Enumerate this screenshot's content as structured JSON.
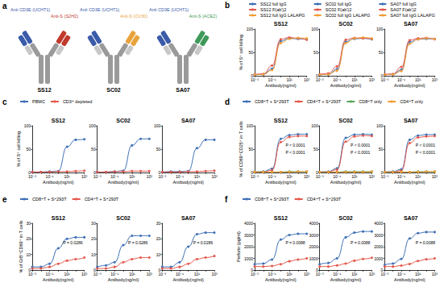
{
  "diagram": {
    "label": "a",
    "antibodies": [
      {
        "name": "SS12",
        "cd3_arm": "Anti CD3E (UCHT1)",
        "s_arm": "Anti-S (S2H2)",
        "cd3_color": "#3a5ba9",
        "s_color": "#c0392b"
      },
      {
        "name": "SC02",
        "cd3_arm": "Anti CD3E (UCHT1)",
        "s_arm": "Anti-S (CV30)",
        "cd3_color": "#3a5ba9",
        "s_color": "#e8a33c"
      },
      {
        "name": "SA07",
        "cd3_arm": "Anti CD3E (UCHT1)",
        "s_arm": "Anti-S (ACE2)",
        "cd3_color": "#3a5ba9",
        "s_color": "#3f9a5a"
      }
    ]
  },
  "chart_data": [
    {
      "label": "b",
      "type": "line",
      "log": "x",
      "grid": false,
      "legend": "top",
      "marker": "circle",
      "x_label": "Antibody(ng/ml)",
      "y_label": "% of S⁺ cell killing",
      "x": [
        0.001,
        0.01,
        0.1,
        1,
        10,
        100,
        1000
      ],
      "xlim": [
        0.001,
        1000
      ],
      "xticks": [
        {
          "value": 0.001,
          "label": "10⁻³"
        },
        {
          "value": 0.1,
          "label": "10⁻¹"
        },
        {
          "value": 10,
          "label": "10¹"
        },
        {
          "value": 1000,
          "label": "10³"
        }
      ],
      "ylim": [
        0,
        100
      ],
      "yticks": [
        0,
        50,
        100
      ],
      "subplots": [
        {
          "title": "SS12",
          "series": [
            {
              "name": "SS12 full IgG",
              "color": "#3d6fb5",
              "values": [
                2,
                3,
                15,
                74,
                80,
                79,
                78
              ]
            },
            {
              "name": "SS12 F(ab')2",
              "color": "#e4574a",
              "values": [
                3,
                4,
                22,
                78,
                82,
                80,
                77
              ]
            },
            {
              "name": "SS12 full IgG LALAPG",
              "color": "#f39c34",
              "values": [
                2,
                3,
                12,
                70,
                79,
                81,
                80
              ]
            }
          ]
        },
        {
          "title": "SC02",
          "series": [
            {
              "name": "SC02 full IgG",
              "color": "#3d6fb5",
              "values": [
                2,
                3,
                14,
                73,
                79,
                80,
                78
              ]
            },
            {
              "name": "SC02 F(ab')2",
              "color": "#e4574a",
              "values": [
                3,
                5,
                20,
                77,
                81,
                80,
                79
              ]
            },
            {
              "name": "SC02 full IgG LALAPG",
              "color": "#f39c34",
              "values": [
                2,
                3,
                11,
                70,
                80,
                82,
                80
              ]
            }
          ]
        },
        {
          "title": "SA07",
          "series": [
            {
              "name": "SA07 full IgG",
              "color": "#3d6fb5",
              "values": [
                2,
                3,
                13,
                72,
                78,
                79,
                79
              ]
            },
            {
              "name": "SA07 F(ab')2",
              "color": "#e4574a",
              "values": [
                3,
                4,
                19,
                76,
                80,
                81,
                78
              ]
            },
            {
              "name": "SA07 full IgG LALAPG",
              "color": "#f39c34",
              "values": [
                2,
                3,
                10,
                68,
                78,
                80,
                79
              ]
            }
          ]
        }
      ]
    },
    {
      "label": "c",
      "type": "line",
      "log": "x",
      "grid": false,
      "legend": "top",
      "marker": "circle",
      "x_label": "Antibody(ng/ml)",
      "y_label": "% of S⁺ cell killing",
      "x": [
        0.001,
        0.01,
        0.1,
        1,
        10,
        100,
        1000
      ],
      "xlim": [
        0.001,
        1000
      ],
      "xticks": [
        {
          "value": 0.001,
          "label": "10⁻³"
        },
        {
          "value": 0.1,
          "label": "10⁻¹"
        },
        {
          "value": 10,
          "label": "10¹"
        },
        {
          "value": 1000,
          "label": "10³"
        }
      ],
      "ylim": [
        0,
        100
      ],
      "yticks": [
        0,
        50,
        100
      ],
      "subplots": [
        {
          "title": "SS12",
          "series": [
            {
              "name": "PBMC",
              "color": "#3d6fb5",
              "values": [
                1,
                1,
                2,
                3,
                55,
                70,
                71
              ]
            },
            {
              "name": "CD3⁺ depleted",
              "color": "#e4574a",
              "values": [
                1,
                1,
                1,
                2,
                2,
                3,
                4
              ]
            }
          ]
        },
        {
          "title": "SC02",
          "series": [
            {
              "name": "PBMC",
              "color": "#3d6fb5",
              "values": [
                1,
                1,
                2,
                4,
                58,
                72,
                72
              ]
            },
            {
              "name": "CD3⁺ depleted",
              "color": "#e4574a",
              "values": [
                1,
                1,
                2,
                2,
                3,
                3,
                3
              ]
            }
          ]
        },
        {
          "title": "SA07",
          "series": [
            {
              "name": "PBMC",
              "color": "#3d6fb5",
              "values": [
                1,
                2,
                2,
                3,
                52,
                70,
                70
              ]
            },
            {
              "name": "CD3⁺ depleted",
              "color": "#e4574a",
              "values": [
                1,
                1,
                1,
                2,
                2,
                3,
                4
              ]
            }
          ]
        }
      ]
    },
    {
      "label": "d",
      "type": "line",
      "log": "x",
      "grid": false,
      "legend": "top",
      "marker": "circle",
      "x_label": "Antibody(ng/ml)",
      "y_label": "% of CD69⁺CD25⁺ in T cells",
      "x": [
        0.001,
        0.01,
        0.1,
        1,
        10,
        100,
        1000
      ],
      "xlim": [
        0.001,
        1000
      ],
      "xticks": [
        {
          "value": 0.001,
          "label": "10⁻³"
        },
        {
          "value": 0.1,
          "label": "10⁻¹"
        },
        {
          "value": 10,
          "label": "10¹"
        },
        {
          "value": 1000,
          "label": "10³"
        }
      ],
      "ylim": [
        0,
        100
      ],
      "yticks": [
        0,
        50,
        100
      ],
      "subplots": [
        {
          "title": "SS12",
          "annotations": [
            "P < 0.0001",
            "P < 0.0001"
          ],
          "series": [
            {
              "name": "CD8⁺T + S⁺293T",
              "color": "#3d6fb5",
              "values": [
                1,
                2,
                8,
                72,
                80,
                82,
                82
              ]
            },
            {
              "name": "CD4⁺T + S⁺293T",
              "color": "#e4574a",
              "values": [
                1,
                1,
                5,
                65,
                76,
                78,
                78
              ]
            },
            {
              "name": "CD8⁺T only",
              "color": "#5aa55a",
              "values": [
                1,
                1,
                1,
                1,
                2,
                2,
                2
              ]
            },
            {
              "name": "CD4⁺T only",
              "color": "#f39c34",
              "values": [
                1,
                1,
                1,
                1,
                1,
                2,
                2
              ]
            }
          ]
        },
        {
          "title": "SC02",
          "annotations": [
            "P < 0.0001",
            "P < 0.0001"
          ],
          "series": [
            {
              "name": "CD8⁺T + S⁺293T",
              "color": "#3d6fb5",
              "values": [
                1,
                2,
                9,
                74,
                81,
                82,
                81
              ]
            },
            {
              "name": "CD4⁺T + S⁺293T",
              "color": "#e4574a",
              "values": [
                1,
                1,
                6,
                66,
                77,
                79,
                78
              ]
            },
            {
              "name": "CD8⁺T only",
              "color": "#5aa55a",
              "values": [
                1,
                1,
                1,
                2,
                2,
                2,
                2
              ]
            },
            {
              "name": "CD4⁺T only",
              "color": "#f39c34",
              "values": [
                1,
                1,
                1,
                1,
                1,
                1,
                2
              ]
            }
          ]
        },
        {
          "title": "SA07",
          "annotations": [
            "P < 0.0001",
            "P < 0.0001"
          ],
          "series": [
            {
              "name": "CD8⁺T + S⁺293T",
              "color": "#3d6fb5",
              "values": [
                1,
                2,
                7,
                70,
                79,
                81,
                81
              ]
            },
            {
              "name": "CD4⁺T + S⁺293T",
              "color": "#e4574a",
              "values": [
                1,
                1,
                4,
                63,
                75,
                77,
                78
              ]
            },
            {
              "name": "CD8⁺T only",
              "color": "#5aa55a",
              "values": [
                1,
                1,
                1,
                1,
                2,
                2,
                2
              ]
            },
            {
              "name": "CD4⁺T only",
              "color": "#f39c34",
              "values": [
                1,
                1,
                1,
                1,
                1,
                2,
                2
              ]
            }
          ]
        }
      ]
    },
    {
      "label": "e",
      "type": "line",
      "log": "x",
      "grid": false,
      "legend": "top",
      "marker": "circle",
      "x_label": "Antibody(ng/ml)",
      "y_label": "% of GrB⁺CD69⁺ in T cells",
      "x": [
        0.001,
        0.01,
        0.1,
        1,
        10,
        100,
        1000
      ],
      "xlim": [
        0.001,
        1000
      ],
      "xticks": [
        {
          "value": 0.001,
          "label": "10⁻³"
        },
        {
          "value": 0.1,
          "label": "10⁻¹"
        },
        {
          "value": 10,
          "label": "10¹"
        },
        {
          "value": 1000,
          "label": "10³"
        }
      ],
      "ylim": [
        0,
        30
      ],
      "yticks": [
        0,
        10,
        20,
        30
      ],
      "subplots": [
        {
          "title": "SS12",
          "annotations": [
            "P = 0.0286"
          ],
          "series": [
            {
              "name": "CD8⁺T + S⁺293T",
              "color": "#3d6fb5",
              "values": [
                2,
                2,
                4,
                14,
                20,
                21,
                21
              ]
            },
            {
              "name": "CD4⁺T + S⁺293T",
              "color": "#e4574a",
              "values": [
                1,
                1,
                2,
                4,
                6,
                7,
                8
              ]
            }
          ]
        },
        {
          "title": "SC02",
          "annotations": [
            "P = 0.0286"
          ],
          "series": [
            {
              "name": "CD8⁺T + S⁺293T",
              "color": "#3d6fb5",
              "values": [
                2,
                3,
                5,
                16,
                22,
                22,
                22
              ]
            },
            {
              "name": "CD4⁺T + S⁺293T",
              "color": "#e4574a",
              "values": [
                1,
                1,
                2,
                5,
                7,
                8,
                8
              ]
            }
          ]
        },
        {
          "title": "SA07",
          "annotations": [
            "P = 0.0286"
          ],
          "series": [
            {
              "name": "CD8⁺T + S⁺293T",
              "color": "#3d6fb5",
              "values": [
                2,
                2,
                5,
                15,
                23,
                24,
                24
              ]
            },
            {
              "name": "CD4⁺T + S⁺293T",
              "color": "#e4574a",
              "values": [
                1,
                1,
                2,
                4,
                7,
                8,
                9
              ]
            }
          ]
        }
      ]
    },
    {
      "label": "f",
      "type": "line",
      "log": "x",
      "grid": false,
      "legend": "top",
      "marker": "circle",
      "x_label": "Antibody(ng/ml)",
      "y_label": "Perforin (pg/ml)",
      "x": [
        0.001,
        0.01,
        0.1,
        1,
        10,
        100,
        1000
      ],
      "xlim": [
        0.001,
        1000
      ],
      "xticks": [
        {
          "value": 0.001,
          "label": "10⁻³"
        },
        {
          "value": 0.1,
          "label": "10⁻¹"
        },
        {
          "value": 10,
          "label": "10¹"
        },
        {
          "value": 1000,
          "label": "10³"
        }
      ],
      "ylim": [
        0,
        4000
      ],
      "yticks": [
        0,
        1000,
        2000,
        3000,
        4000
      ],
      "subplots": [
        {
          "title": "SS12",
          "annotations": [
            "P = 0.0088"
          ],
          "series": [
            {
              "name": "CD8⁺T + S⁺293T",
              "color": "#3d6fb5",
              "values": [
                500,
                550,
                900,
                2600,
                3000,
                3100,
                3100
              ]
            },
            {
              "name": "CD4⁺T + S⁺293T",
              "color": "#e4574a",
              "values": [
                300,
                300,
                350,
                500,
                750,
                900,
                1000
              ]
            }
          ]
        },
        {
          "title": "SC02",
          "annotations": [
            "P = 0.0088"
          ],
          "series": [
            {
              "name": "CD8⁺T + S⁺293T",
              "color": "#3d6fb5",
              "values": [
                500,
                600,
                1000,
                2800,
                3200,
                3300,
                3300
              ]
            },
            {
              "name": "CD4⁺T + S⁺293T",
              "color": "#e4574a",
              "values": [
                300,
                300,
                400,
                550,
                800,
                950,
                1050
              ]
            }
          ]
        },
        {
          "title": "SA07",
          "annotations": [
            "P = 0.0088"
          ],
          "series": [
            {
              "name": "CD8⁺T + S⁺293T",
              "color": "#3d6fb5",
              "values": [
                450,
                550,
                950,
                2700,
                3150,
                3250,
                3250
              ]
            },
            {
              "name": "CD4⁺T + S⁺293T",
              "color": "#e4574a",
              "values": [
                300,
                300,
                380,
                520,
                780,
                920,
                1000
              ]
            }
          ]
        }
      ]
    }
  ]
}
